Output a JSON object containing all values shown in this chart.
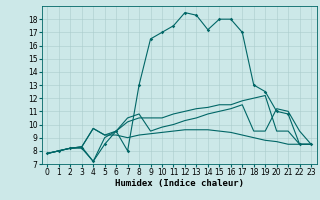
{
  "xlabel": "Humidex (Indice chaleur)",
  "bg_color": "#cce8e8",
  "line_color": "#006666",
  "xlim": [
    -0.5,
    23.5
  ],
  "ylim": [
    7,
    19
  ],
  "yticks": [
    7,
    8,
    9,
    10,
    11,
    12,
    13,
    14,
    15,
    16,
    17,
    18
  ],
  "xticks": [
    0,
    1,
    2,
    3,
    4,
    5,
    6,
    7,
    8,
    9,
    10,
    11,
    12,
    13,
    14,
    15,
    16,
    17,
    18,
    19,
    20,
    21,
    22,
    23
  ],
  "line1_x": [
    0,
    1,
    2,
    3,
    4,
    5,
    6,
    7,
    8,
    9,
    10,
    11,
    12,
    13,
    14,
    15,
    16,
    17,
    18,
    19,
    20,
    21,
    22,
    23
  ],
  "line1_y": [
    7.8,
    8.0,
    8.2,
    8.2,
    7.2,
    8.5,
    9.5,
    8.0,
    13.0,
    16.5,
    17.0,
    17.5,
    18.5,
    18.3,
    17.2,
    18.0,
    18.0,
    17.0,
    13.0,
    12.5,
    11.0,
    10.8,
    8.5,
    8.5
  ],
  "line2_x": [
    0,
    1,
    2,
    3,
    4,
    5,
    6,
    7,
    8,
    9,
    10,
    11,
    12,
    13,
    14,
    15,
    16,
    17,
    18,
    19,
    20,
    21,
    22,
    23
  ],
  "line2_y": [
    7.8,
    8.0,
    8.2,
    8.3,
    9.7,
    9.2,
    9.5,
    10.2,
    10.5,
    10.5,
    10.5,
    10.8,
    11.0,
    11.2,
    11.3,
    11.5,
    11.5,
    11.8,
    12.0,
    12.2,
    9.5,
    9.5,
    8.5,
    8.5
  ],
  "line3_x": [
    0,
    1,
    2,
    3,
    4,
    5,
    6,
    7,
    8,
    9,
    10,
    11,
    12,
    13,
    14,
    15,
    16,
    17,
    18,
    19,
    20,
    21,
    22,
    23
  ],
  "line3_y": [
    7.8,
    8.0,
    8.2,
    8.3,
    9.7,
    9.2,
    9.2,
    9.0,
    9.2,
    9.3,
    9.4,
    9.5,
    9.6,
    9.6,
    9.6,
    9.5,
    9.4,
    9.2,
    9.0,
    8.8,
    8.7,
    8.5,
    8.5,
    8.5
  ],
  "line4_x": [
    0,
    1,
    2,
    3,
    4,
    5,
    6,
    7,
    8,
    9,
    10,
    11,
    12,
    13,
    14,
    15,
    16,
    17,
    18,
    19,
    20,
    21,
    22,
    23
  ],
  "line4_y": [
    7.8,
    8.0,
    8.2,
    8.3,
    7.2,
    9.0,
    9.5,
    10.5,
    10.8,
    9.5,
    9.8,
    10.0,
    10.3,
    10.5,
    10.8,
    11.0,
    11.2,
    11.5,
    9.5,
    9.5,
    11.2,
    11.0,
    9.5,
    8.5
  ],
  "grid_color": "#aacccc",
  "tick_fontsize": 5.5,
  "xlabel_fontsize": 6.5
}
